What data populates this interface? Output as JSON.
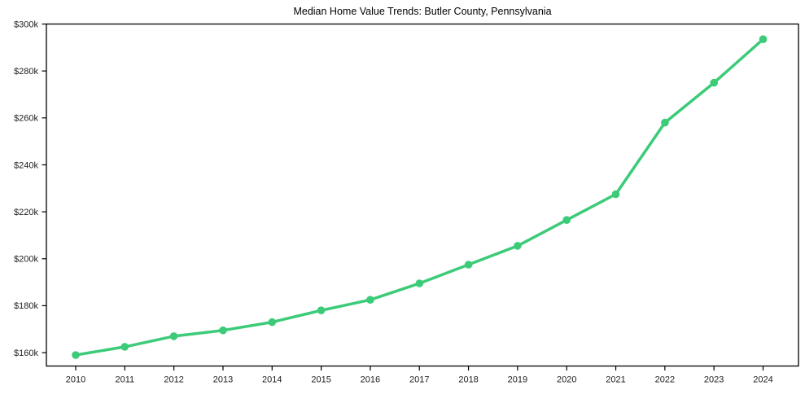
{
  "page": {
    "background": "#ffffff"
  },
  "chart_data": {
    "type": "line",
    "title": "Median Home Value Trends: Butler County, Pennsylvania",
    "xlabel": "",
    "ylabel": "",
    "categories": [
      "2010",
      "2011",
      "2012",
      "2013",
      "2014",
      "2015",
      "2016",
      "2017",
      "2018",
      "2019",
      "2020",
      "2021",
      "2022",
      "2023",
      "2024"
    ],
    "series": [
      {
        "name": "Median Home Value",
        "color": "#3ccb78",
        "marker": "circle",
        "values": [
          159000,
          162500,
          167000,
          169500,
          173000,
          178000,
          182500,
          189500,
          197500,
          205500,
          216500,
          227500,
          258000,
          275000,
          293500
        ]
      }
    ],
    "ylim": [
      154300,
      300000
    ],
    "yticks": [
      {
        "value": 160000,
        "label": "$160k"
      },
      {
        "value": 180000,
        "label": "$180k"
      },
      {
        "value": 200000,
        "label": "$200k"
      },
      {
        "value": 220000,
        "label": "$220k"
      },
      {
        "value": 240000,
        "label": "$240k"
      },
      {
        "value": 260000,
        "label": "$260k"
      },
      {
        "value": 280000,
        "label": "$280k"
      },
      {
        "value": 300000,
        "label": "$300k"
      }
    ],
    "grid": false,
    "legend": "none",
    "frame": true,
    "axis_color": "#000000",
    "tick_label_color": "#1c1c1c"
  }
}
